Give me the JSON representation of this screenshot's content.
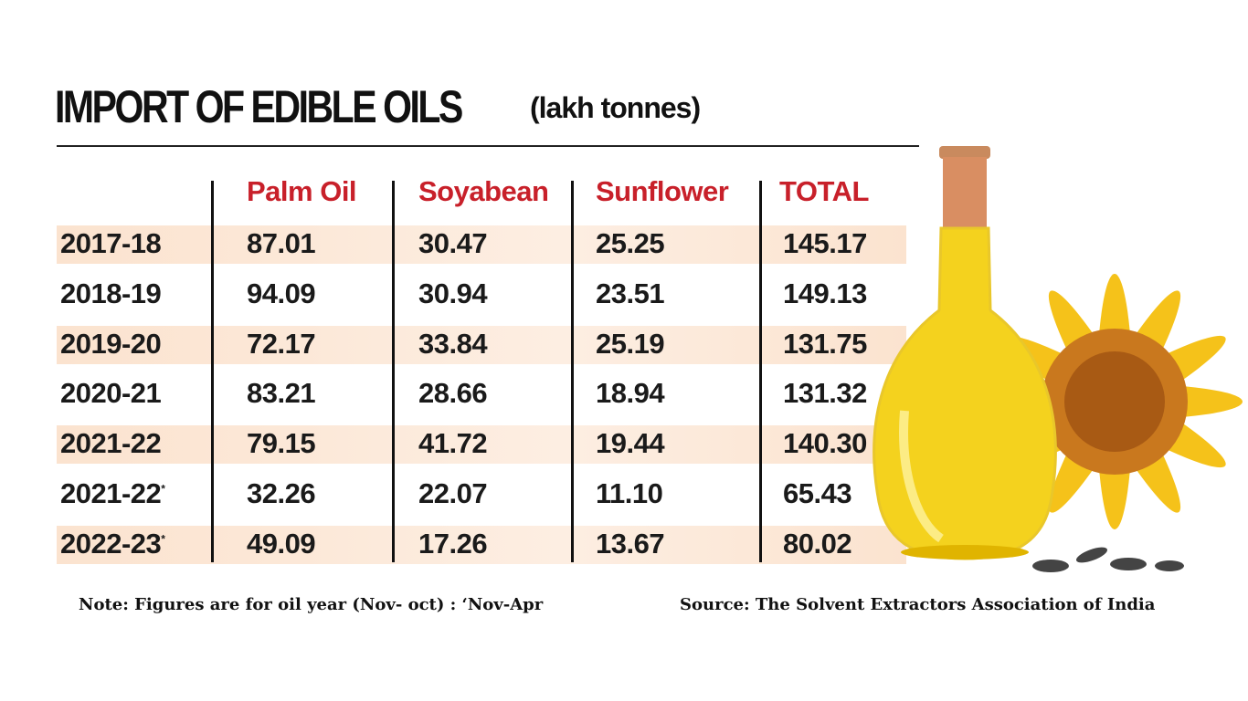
{
  "title": "IMPORT OF EDIBLE OILS",
  "unit": "(lakh tonnes)",
  "note": "Note: Figures are for oil year (Nov- oct) : ‘Nov-Apr",
  "source": "Source: The Solvent Extractors Association of India",
  "colors": {
    "header": "#c8202a",
    "shade": "#fbe3cf"
  },
  "chart_data": {
    "type": "table",
    "title": "IMPORT OF EDIBLE OILS (lakh tonnes)",
    "columns": [
      "",
      "Palm Oil",
      "Soyabean",
      "Sunflower",
      "TOTAL"
    ],
    "rows": [
      {
        "year": "2017-18",
        "marker": "",
        "values": [
          "87.01",
          "30.47",
          "25.25",
          "145.17"
        ]
      },
      {
        "year": "2018-19",
        "marker": "",
        "values": [
          "94.09",
          "30.94",
          "23.51",
          "149.13"
        ]
      },
      {
        "year": "2019-20",
        "marker": "",
        "values": [
          "72.17",
          "33.84",
          "25.19",
          "131.75"
        ]
      },
      {
        "year": "2020-21",
        "marker": "",
        "values": [
          "83.21",
          "28.66",
          "18.94",
          "131.32"
        ]
      },
      {
        "year": "2021-22",
        "marker": "",
        "values": [
          "79.15",
          "41.72",
          "19.44",
          "140.30"
        ]
      },
      {
        "year": "2021-22",
        "marker": "*",
        "values": [
          "32.26",
          "22.07",
          "11.10",
          "65.43"
        ]
      },
      {
        "year": "2022-23",
        "marker": "*",
        "values": [
          "49.09",
          "17.26",
          "13.67",
          "80.02"
        ]
      }
    ]
  }
}
